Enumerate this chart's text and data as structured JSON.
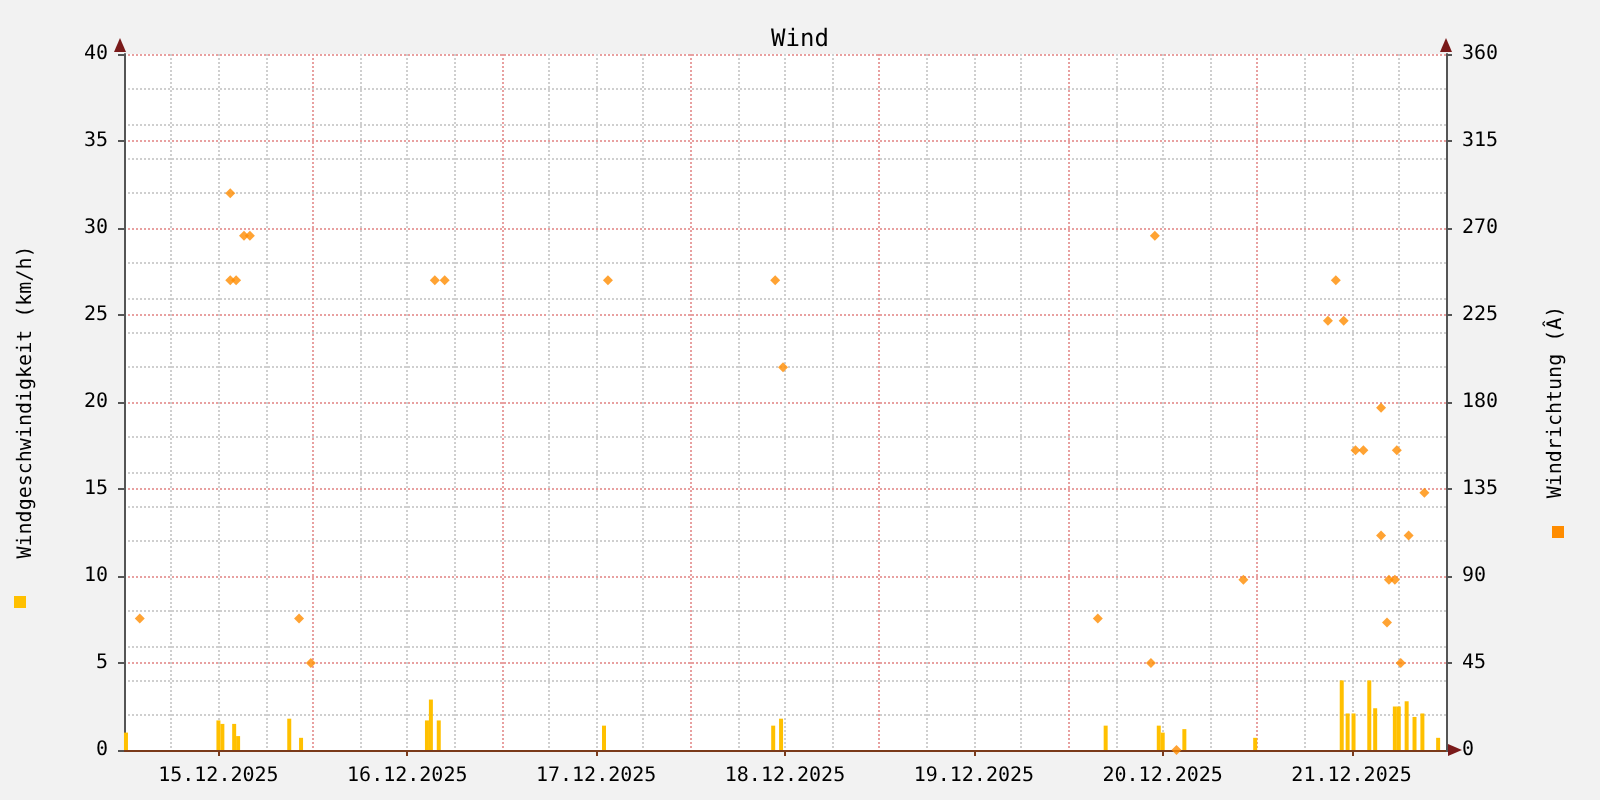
{
  "chart_data": {
    "type": "bar",
    "title": "Wind",
    "ylabel": "Windgeschwindigkeit (km/h)",
    "y2label": "Windrichtung (Â)",
    "xlim": [
      "2025-12-15T00:00",
      "2025-12-22T00:00"
    ],
    "xticks": [
      {
        "value": "2025-12-15T12:00",
        "label": "15.12.2025"
      },
      {
        "value": "2025-12-16T12:00",
        "label": "16.12.2025"
      },
      {
        "value": "2025-12-17T12:00",
        "label": "17.12.2025"
      },
      {
        "value": "2025-12-18T12:00",
        "label": "18.12.2025"
      },
      {
        "value": "2025-12-19T12:00",
        "label": "19.12.2025"
      },
      {
        "value": "2025-12-20T12:00",
        "label": "20.12.2025"
      },
      {
        "value": "2025-12-21T12:00",
        "label": "21.12.2025"
      }
    ],
    "ylim": [
      0,
      40
    ],
    "yticks": [
      0,
      5,
      10,
      15,
      20,
      25,
      30,
      35,
      40
    ],
    "y2lim": [
      0,
      360
    ],
    "y2ticks": [
      0,
      45,
      90,
      135,
      180,
      225,
      270,
      315,
      360
    ],
    "grid": true,
    "series": [
      {
        "color": "#ffc000",
        "x": [
          "2025-12-15T00:15",
          "2025-12-15T12:00",
          "2025-12-15T12:30",
          "2025-12-15T14:00",
          "2025-12-15T14:30",
          "2025-12-15T21:00",
          "2025-12-15T22:30",
          "2025-12-16T14:30",
          "2025-12-16T15:00",
          "2025-12-16T16:00",
          "2025-12-17T13:00",
          "2025-12-18T10:30",
          "2025-12-18T11:30",
          "2025-12-20T04:45",
          "2025-12-20T11:30",
          "2025-12-20T12:00",
          "2025-12-20T14:45",
          "2025-12-20T23:45",
          "2025-12-21T10:45",
          "2025-12-21T11:30",
          "2025-12-21T12:15",
          "2025-12-21T14:15",
          "2025-12-21T15:00",
          "2025-12-21T17:30",
          "2025-12-21T18:00",
          "2025-12-21T19:00",
          "2025-12-21T20:00",
          "2025-12-21T21:00",
          "2025-12-21T23:00"
        ],
        "values": [
          1,
          1.7,
          1.5,
          1.5,
          0.8,
          1.8,
          0.7,
          1.7,
          2.9,
          1.7,
          1.4,
          1.4,
          1.8,
          1.4,
          1.4,
          1,
          1.2,
          0.7,
          4,
          2.1,
          2.1,
          4,
          2.4,
          2.5,
          2.5,
          2.8,
          1.9,
          2.1,
          0.7
        ]
      },
      {
        "type": "scatter",
        "axis": "y2",
        "color": "#ff8c00",
        "marker": "diamond",
        "x": [
          "2025-12-15T02:00",
          "2025-12-15T13:30",
          "2025-12-15T13:30",
          "2025-12-15T14:15",
          "2025-12-15T15:15",
          "2025-12-15T16:00",
          "2025-12-15T22:15",
          "2025-12-15T23:45",
          "2025-12-16T15:30",
          "2025-12-16T16:45",
          "2025-12-17T13:30",
          "2025-12-18T10:45",
          "2025-12-18T11:45",
          "2025-12-20T03:45",
          "2025-12-20T10:30",
          "2025-12-20T11:00",
          "2025-12-20T13:45",
          "2025-12-20T22:15",
          "2025-12-21T09:00",
          "2025-12-21T10:00",
          "2025-12-21T11:00",
          "2025-12-21T12:30",
          "2025-12-21T13:30",
          "2025-12-21T15:45",
          "2025-12-21T15:45",
          "2025-12-21T16:30",
          "2025-12-21T16:45",
          "2025-12-21T17:30",
          "2025-12-21T17:45",
          "2025-12-21T18:15",
          "2025-12-21T19:15",
          "2025-12-21T21:15"
        ],
        "values": [
          68,
          288,
          243,
          243,
          266,
          266,
          68,
          45,
          243,
          243,
          243,
          243,
          198,
          68,
          45,
          266,
          0,
          88,
          222,
          243,
          222,
          155,
          155,
          177,
          111,
          66,
          88,
          88,
          155,
          45,
          111,
          133
        ]
      }
    ]
  }
}
